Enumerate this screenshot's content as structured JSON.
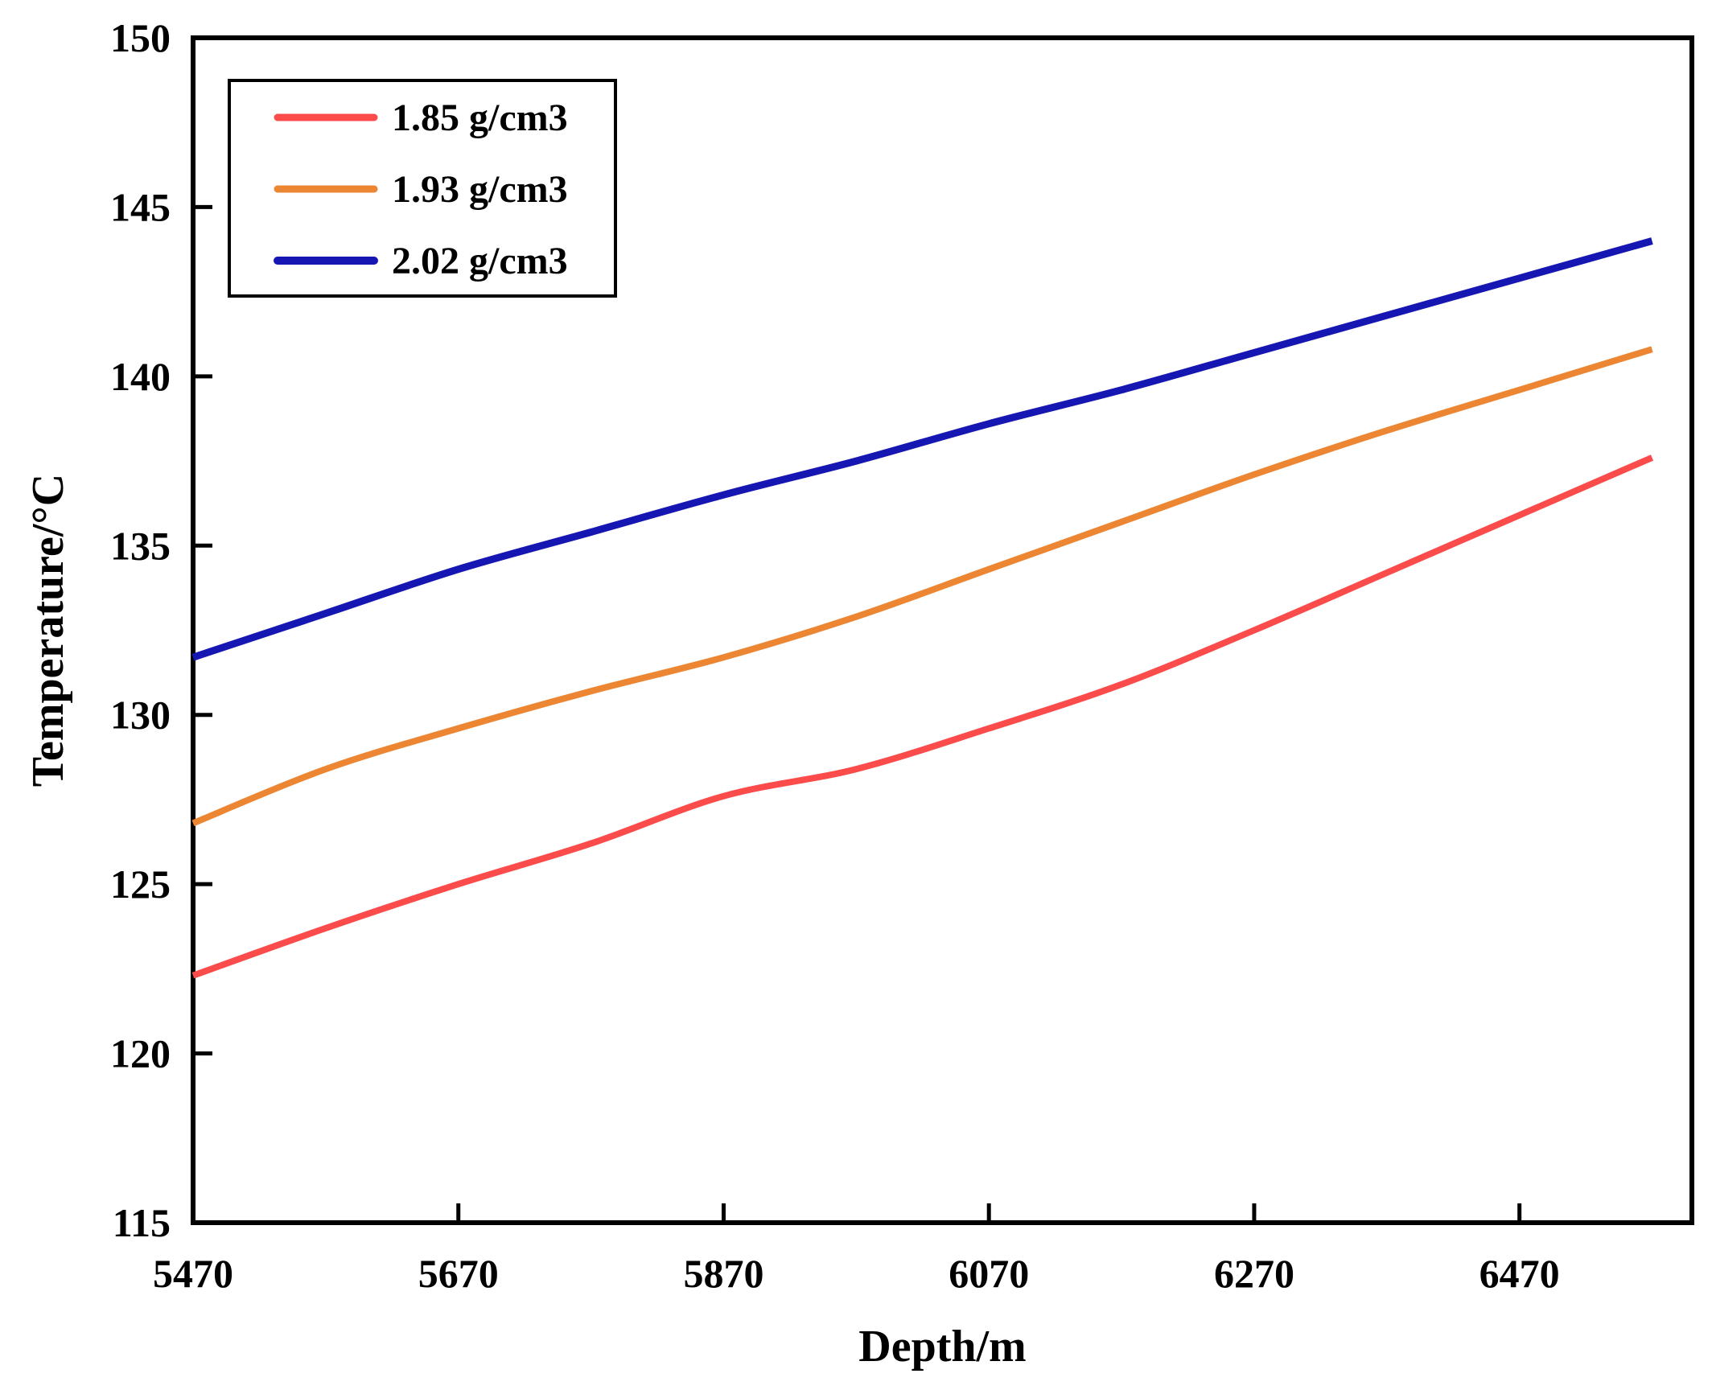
{
  "chart_data": {
    "type": "line",
    "title": "",
    "xlabel": "Depth/m",
    "ylabel": "Temperature/°C",
    "xlim": [
      5470,
      6600
    ],
    "ylim": [
      115,
      150
    ],
    "x_ticks": [
      5470,
      5670,
      5870,
      6070,
      6270,
      6470
    ],
    "y_ticks": [
      115,
      120,
      125,
      130,
      135,
      140,
      145,
      150
    ],
    "grid": false,
    "legend_position": "top-left",
    "x": [
      5470,
      5570,
      5670,
      5770,
      5870,
      5970,
      6070,
      6170,
      6270,
      6370,
      6470,
      6570
    ],
    "series": [
      {
        "name": "1.85 g/cm3",
        "color": "#FB4B4B",
        "line_width": 8,
        "values": [
          122.3,
          123.7,
          125.0,
          126.2,
          127.6,
          128.4,
          129.6,
          130.9,
          132.5,
          134.2,
          135.9,
          137.6
        ]
      },
      {
        "name": "1.93 g/cm3",
        "color": "#ED8633",
        "line_width": 8,
        "values": [
          126.8,
          128.4,
          129.6,
          130.7,
          131.7,
          132.9,
          134.3,
          135.7,
          137.1,
          138.4,
          139.6,
          140.8
        ]
      },
      {
        "name": "2.02 g/cm3",
        "color": "#1616B2",
        "line_width": 9,
        "values": [
          131.7,
          133.0,
          134.3,
          135.4,
          136.5,
          137.5,
          138.6,
          139.6,
          140.7,
          141.8,
          142.9,
          144.0
        ]
      }
    ]
  },
  "colors": {
    "axis": "#000000",
    "background": "#FFFFFF",
    "legend_border": "#000000"
  }
}
